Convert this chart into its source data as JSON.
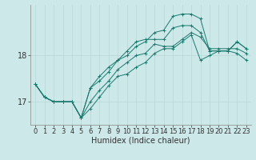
{
  "bg_color": "#cde8e8",
  "line_color": "#1a7a6e",
  "grid_color": "#b8d8d8",
  "xlabel": "Humidex (Indice chaleur)",
  "xlabel_fontsize": 7,
  "tick_fontsize": 6,
  "yticks": [
    17,
    18
  ],
  "xlim": [
    -0.5,
    23.5
  ],
  "ylim": [
    16.5,
    19.1
  ],
  "series": [
    [
      17.38,
      17.1,
      17.0,
      17.0,
      17.0,
      16.65,
      16.85,
      17.1,
      17.35,
      17.55,
      17.6,
      17.75,
      17.85,
      18.05,
      18.15,
      18.15,
      18.3,
      18.45,
      17.9,
      18.0,
      18.1,
      18.1,
      18.05,
      17.9
    ],
    [
      17.38,
      17.1,
      17.0,
      17.0,
      17.0,
      16.65,
      17.3,
      17.55,
      17.75,
      17.9,
      18.1,
      18.3,
      18.35,
      18.35,
      18.35,
      18.6,
      18.65,
      18.65,
      18.5,
      18.1,
      18.1,
      18.1,
      18.3,
      18.15
    ],
    [
      17.38,
      17.1,
      17.0,
      17.0,
      17.0,
      16.65,
      17.0,
      17.25,
      17.45,
      17.7,
      17.85,
      18.0,
      18.05,
      18.25,
      18.2,
      18.2,
      18.35,
      18.5,
      18.4,
      18.15,
      18.15,
      18.15,
      18.15,
      18.05
    ],
    [
      17.38,
      17.1,
      17.0,
      17.0,
      17.0,
      16.65,
      17.3,
      17.45,
      17.65,
      17.9,
      18.0,
      18.2,
      18.3,
      18.5,
      18.55,
      18.85,
      18.9,
      18.9,
      18.8,
      18.1,
      18.1,
      18.1,
      18.3,
      18.15
    ]
  ]
}
